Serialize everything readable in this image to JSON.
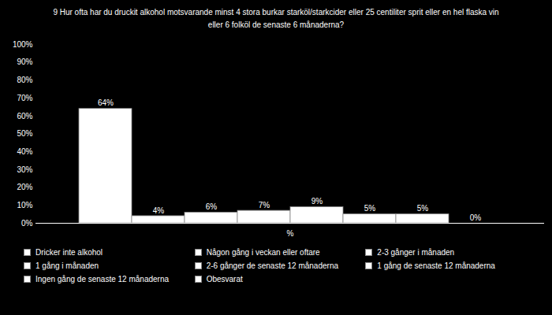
{
  "chart_data": {
    "type": "bar",
    "title": "9 Hur ofta har du druckit alkohol motsvarande minst 4 stora burkar starköl/starkcider eller 25 centiliter sprit eller en hel flaska vin eller 6 folköl de senaste 6 månaderna?",
    "categories": [
      "%"
    ],
    "series": [
      {
        "name": "Dricker inte alkohol",
        "color": "#ffffff",
        "values": [
          64
        ],
        "value_labels": [
          "64%"
        ]
      },
      {
        "name": "Någon gång i veckan eller oftare",
        "color": "#ffffff",
        "values": [
          4
        ],
        "value_labels": [
          "4%"
        ]
      },
      {
        "name": "2-3 gånger i månaden",
        "color": "#ffffff",
        "values": [
          6
        ],
        "value_labels": [
          "6%"
        ]
      },
      {
        "name": "1 gång i månaden",
        "color": "#ffffff",
        "values": [
          7
        ],
        "value_labels": [
          "7%"
        ]
      },
      {
        "name": "2-6 gånger de senaste 12 månaderna",
        "color": "#ffffff",
        "values": [
          9
        ],
        "value_labels": [
          "9%"
        ]
      },
      {
        "name": "1 gång de senaste 12 månaderna",
        "color": "#ffffff",
        "values": [
          5
        ],
        "value_labels": [
          "5%"
        ]
      },
      {
        "name": "Ingen gång de senaste 12 månaderna",
        "color": "#ffffff",
        "values": [
          5
        ],
        "value_labels": [
          "5%"
        ]
      },
      {
        "name": "Obesvarat",
        "color": "#ffffff",
        "values": [
          0
        ],
        "value_labels": [
          "0%"
        ]
      }
    ],
    "ylim": [
      0,
      100
    ],
    "yticks": [
      {
        "value": 0,
        "label": "0%"
      },
      {
        "value": 10,
        "label": "10%"
      },
      {
        "value": 20,
        "label": "20%"
      },
      {
        "value": 30,
        "label": "30%"
      },
      {
        "value": 40,
        "label": "40%"
      },
      {
        "value": 50,
        "label": "50%"
      },
      {
        "value": 60,
        "label": "60%"
      },
      {
        "value": 70,
        "label": "70%"
      },
      {
        "value": 80,
        "label": "80%"
      },
      {
        "value": 90,
        "label": "90%"
      },
      {
        "value": 100,
        "label": "100%"
      }
    ],
    "data_labels": true,
    "legend": "bottom",
    "grid": false
  }
}
